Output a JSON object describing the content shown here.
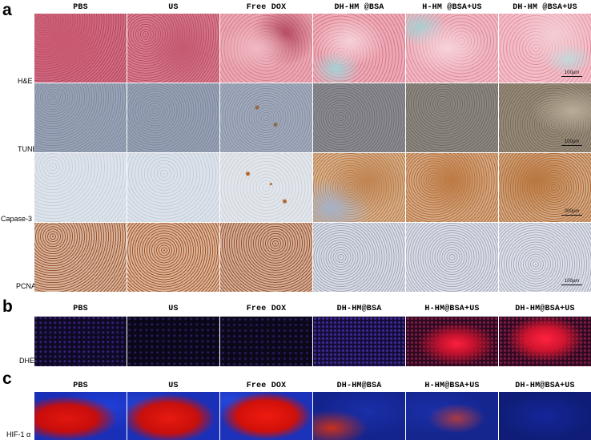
{
  "panels": [
    {
      "letter": "a",
      "columns": [
        "PBS",
        "US",
        "Free DOX",
        "DH-HM @BSA",
        "H-HM @BSA+US",
        "DH-HM @BSA+US"
      ],
      "rows": [
        {
          "label": "H&E",
          "scale": "100μm"
        },
        {
          "label": "TUNEL",
          "scale": "100μm"
        },
        {
          "label": "Capase-3",
          "scale": "200μm"
        },
        {
          "label": "PCNA",
          "scale": "100μm"
        }
      ]
    },
    {
      "letter": "b",
      "columns": [
        "PBS",
        "US",
        "Free DOX",
        "DH-HM@BSA",
        "H-HM@BSA+US",
        "DH-HM@BSA+US"
      ],
      "rows": [
        {
          "label": "DHE"
        }
      ]
    },
    {
      "letter": "c",
      "columns": [
        "PBS",
        "US",
        "Free DOX",
        "DH-HM@BSA",
        "H-HM@BSA+US",
        "DH-HM@BSA+US"
      ],
      "rows": [
        {
          "label": "HIF-1 α"
        }
      ]
    }
  ]
}
